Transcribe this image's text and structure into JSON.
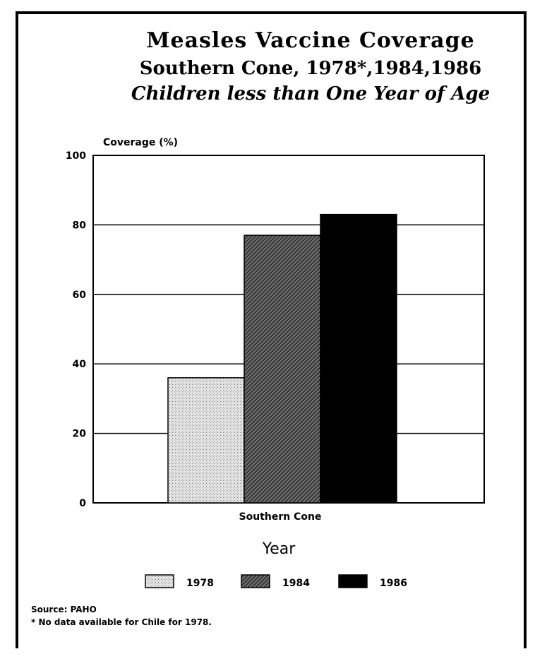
{
  "chart_data": {
    "type": "bar",
    "title": "Measles Vaccine Coverage",
    "subtitle": "Southern Cone, 1978*,1984,1986",
    "subtitle2": "Children less than One Year of Age",
    "ylabel": "Coverage (%)",
    "xlabel": "Year",
    "categories": [
      "Southern Cone"
    ],
    "series": [
      {
        "name": "1978",
        "values": [
          36
        ]
      },
      {
        "name": "1984",
        "values": [
          77
        ]
      },
      {
        "name": "1986",
        "values": [
          83
        ]
      }
    ],
    "ylim": [
      0,
      100
    ],
    "yticks": [
      0,
      20,
      40,
      60,
      80,
      100
    ],
    "grid": true,
    "legend_position": "bottom",
    "colors": {
      "1978": "#d8d8d8",
      "1984": "#4a4a4a",
      "1986": "#000000"
    }
  },
  "notes": {
    "source": "Source: PAHO",
    "footnote": "* No data available for Chile for 1978."
  }
}
